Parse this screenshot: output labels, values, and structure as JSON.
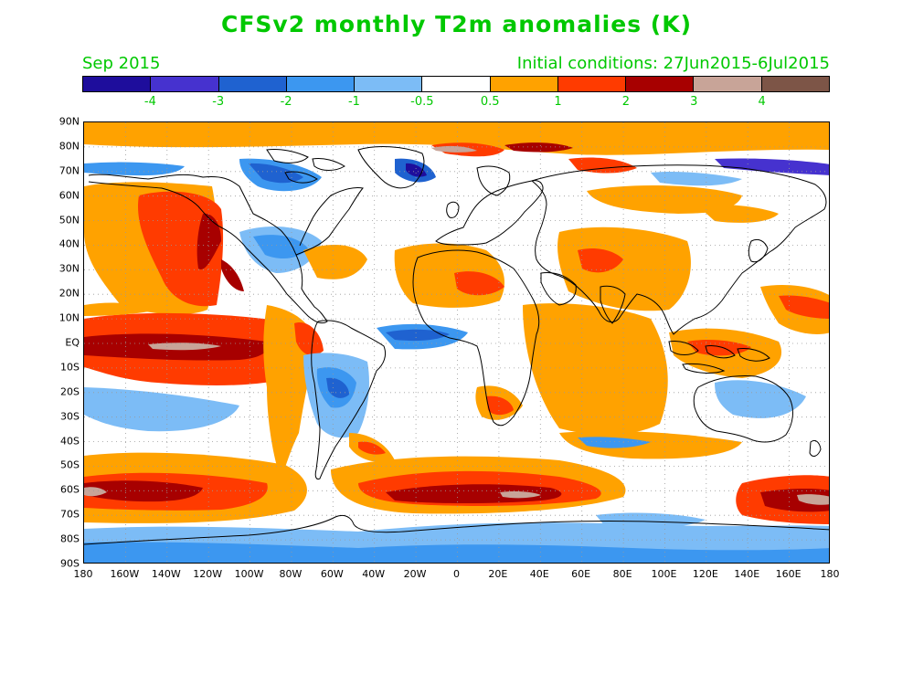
{
  "title": "CFSv2 monthly T2m anomalies (K)",
  "month_label": "Sep 2015",
  "init_label": "Initial conditions: 27Jun2015-6Jul2015",
  "colorbar": {
    "colors": [
      "#1e0d9c",
      "#4632cf",
      "#1f62d0",
      "#3c97f0",
      "#7cbcf6",
      "#ffffff",
      "#ffa200",
      "#ff3b00",
      "#a70000",
      "#c8a498",
      "#7d5547"
    ],
    "labels": [
      "-4",
      "-3",
      "-2",
      "-1",
      "-0.5",
      "0.5",
      "1",
      "2",
      "3",
      "4"
    ]
  },
  "axes": {
    "lat_labels": [
      "90N",
      "80N",
      "70N",
      "60N",
      "50N",
      "40N",
      "30N",
      "20N",
      "10N",
      "EQ",
      "10S",
      "20S",
      "30S",
      "40S",
      "50S",
      "60S",
      "70S",
      "80S",
      "90S"
    ],
    "lon_labels": [
      "180",
      "160W",
      "140W",
      "120W",
      "100W",
      "80W",
      "60W",
      "40W",
      "20W",
      "0",
      "20E",
      "40E",
      "60E",
      "80E",
      "100E",
      "120E",
      "140E",
      "160E",
      "180"
    ]
  }
}
